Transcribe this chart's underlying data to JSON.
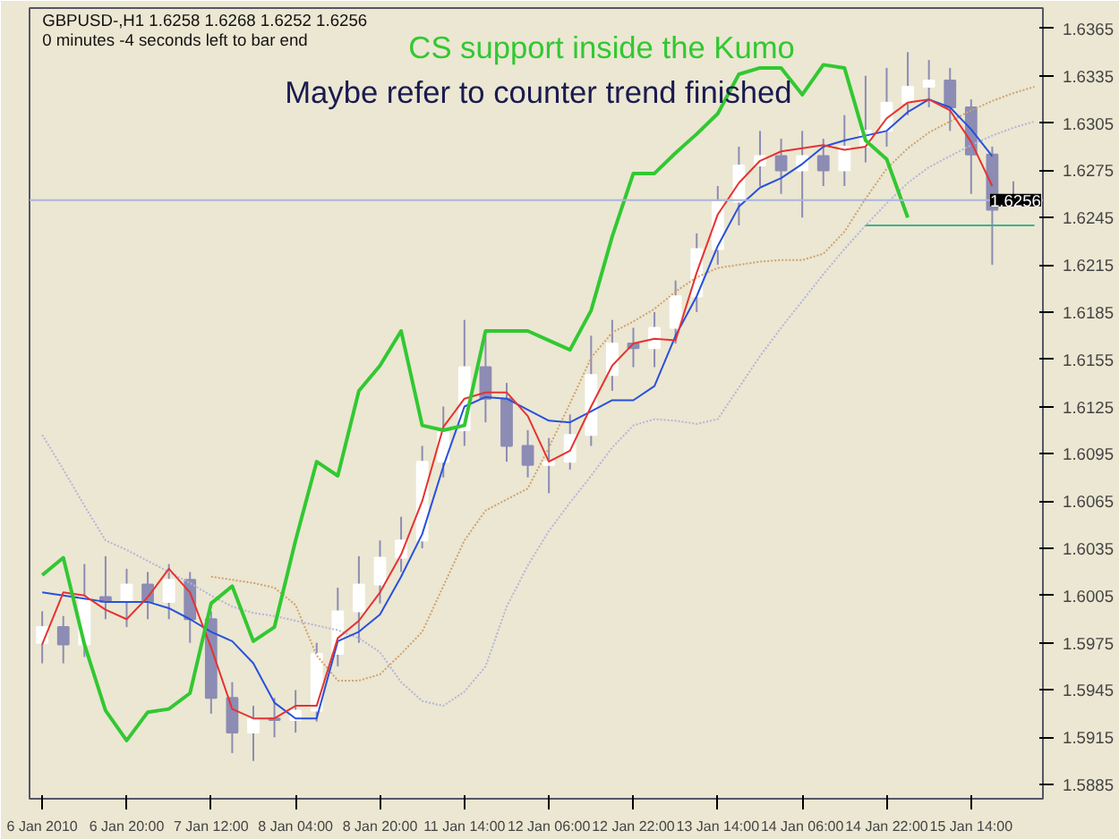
{
  "chart_data": {
    "type": "candlestick",
    "title": "GBPUSD-,H1  1.6258 1.6268 1.6252 1.6256",
    "subtitle": "0 minutes -4 seconds left to bar end",
    "annotations": [
      "CS support inside the Kumo",
      "Maybe refer to counter trend finished"
    ],
    "categories": [
      "6 Jan 2010",
      null,
      null,
      null,
      "6 Jan 20:00",
      null,
      null,
      null,
      "7 Jan 12:00",
      null,
      null,
      null,
      "8 Jan 04:00",
      null,
      null,
      null,
      "8 Jan 20:00",
      null,
      null,
      null,
      "11 Jan 14:00",
      null,
      null,
      null,
      "12 Jan 06:00",
      null,
      null,
      null,
      "12 Jan 22:00",
      null,
      null,
      null,
      "13 Jan 14:00",
      null,
      null,
      null,
      "14 Jan 06:00",
      null,
      null,
      null,
      "14 Jan 22:00",
      null,
      null,
      null,
      "15 Jan 14:00",
      null,
      null,
      null
    ],
    "ohlc": [
      [
        1.5975,
        1.5995,
        1.5962,
        1.5985
      ],
      [
        1.5985,
        1.5992,
        1.5962,
        1.5974
      ],
      [
        1.5974,
        1.6025,
        1.5966,
        1.6004
      ],
      [
        1.6004,
        1.603,
        1.599,
        1.6001
      ],
      [
        1.6001,
        1.6022,
        1.5985,
        1.6012
      ],
      [
        1.6012,
        1.602,
        1.599,
        1.6001
      ],
      [
        1.6001,
        1.6025,
        1.599,
        1.6015
      ],
      [
        1.6015,
        1.602,
        1.5975,
        1.599
      ],
      [
        1.599,
        1.5995,
        1.593,
        1.594
      ],
      [
        1.594,
        1.595,
        1.5905,
        1.5918
      ],
      [
        1.5918,
        1.5935,
        1.59,
        1.5927
      ],
      [
        1.5927,
        1.594,
        1.5915,
        1.5926
      ],
      [
        1.5926,
        1.5945,
        1.5918,
        1.5932
      ],
      [
        1.5932,
        1.5975,
        1.5925,
        1.5968
      ],
      [
        1.5968,
        1.601,
        1.596,
        1.5995
      ],
      [
        1.5995,
        1.603,
        1.5975,
        1.6012
      ],
      [
        1.6012,
        1.604,
        1.6,
        1.6029
      ],
      [
        1.6029,
        1.6055,
        1.602,
        1.604
      ],
      [
        1.604,
        1.61,
        1.6035,
        1.609
      ],
      [
        1.609,
        1.6125,
        1.608,
        1.611
      ],
      [
        1.611,
        1.618,
        1.61,
        1.615
      ],
      [
        1.615,
        1.617,
        1.6115,
        1.613
      ],
      [
        1.613,
        1.614,
        1.609,
        1.61
      ],
      [
        1.61,
        1.611,
        1.608,
        1.6088
      ],
      [
        1.6088,
        1.6105,
        1.607,
        1.609
      ],
      [
        1.609,
        1.612,
        1.6085,
        1.6107
      ],
      [
        1.6107,
        1.617,
        1.61,
        1.6145
      ],
      [
        1.6145,
        1.618,
        1.6135,
        1.6165
      ],
      [
        1.6165,
        1.6175,
        1.615,
        1.6162
      ],
      [
        1.6162,
        1.6185,
        1.615,
        1.6175
      ],
      [
        1.6175,
        1.6205,
        1.6165,
        1.6195
      ],
      [
        1.6195,
        1.6235,
        1.6185,
        1.6225
      ],
      [
        1.6225,
        1.6265,
        1.6215,
        1.6255
      ],
      [
        1.6255,
        1.629,
        1.624,
        1.6278
      ],
      [
        1.6278,
        1.63,
        1.6265,
        1.6284
      ],
      [
        1.6284,
        1.6295,
        1.626,
        1.6275
      ],
      [
        1.6275,
        1.63,
        1.6245,
        1.6284
      ],
      [
        1.6284,
        1.6295,
        1.6265,
        1.6275
      ],
      [
        1.6275,
        1.631,
        1.6265,
        1.629
      ],
      [
        1.629,
        1.6335,
        1.628,
        1.63
      ],
      [
        1.63,
        1.634,
        1.629,
        1.6318
      ],
      [
        1.6318,
        1.635,
        1.631,
        1.6328
      ],
      [
        1.6328,
        1.6345,
        1.6315,
        1.6332
      ],
      [
        1.6332,
        1.634,
        1.63,
        1.6315
      ],
      [
        1.6315,
        1.632,
        1.626,
        1.6285
      ],
      [
        1.6285,
        1.629,
        1.6215,
        1.625
      ],
      [
        1.6258,
        1.6268,
        1.6252,
        1.6256
      ],
      null
    ],
    "colors": [
      "#ffffff",
      "#8c8cb4",
      "#ffffff",
      "#8c8cb4",
      "#ffffff",
      "#8c8cb4",
      "#ffffff",
      "#8c8cb4",
      "#8c8cb4",
      "#8c8cb4",
      "#ffffff",
      "#8c8cb4",
      "#ffffff",
      "#ffffff",
      "#ffffff",
      "#ffffff",
      "#ffffff",
      "#ffffff",
      "#ffffff",
      "#ffffff",
      "#ffffff",
      "#8c8cb4",
      "#8c8cb4",
      "#8c8cb4",
      "#ffffff",
      "#ffffff",
      "#ffffff",
      "#ffffff",
      "#8c8cb4",
      "#ffffff",
      "#ffffff",
      "#ffffff",
      "#ffffff",
      "#ffffff",
      "#ffffff",
      "#8c8cb4",
      "#ffffff",
      "#8c8cb4",
      "#ffffff",
      "#ffffff",
      "#ffffff",
      "#ffffff",
      "#ffffff",
      "#8c8cb4",
      "#8c8cb4",
      "#8c8cb4",
      "#ffffff",
      null
    ],
    "series": [
      {
        "type": "line",
        "line_style": "dotted",
        "color": "#b4b4dc",
        "values": [
          1.6107,
          1.6085,
          1.6062,
          1.604,
          1.6034,
          1.6027,
          1.602,
          1.6013,
          1.6005,
          1.5998,
          1.5994,
          1.5992,
          1.5989,
          1.5986,
          1.5983,
          1.5978,
          1.5969,
          1.595,
          1.5938,
          1.5935,
          1.5944,
          1.596,
          1.5998,
          1.6024,
          1.6046,
          1.6064,
          1.6081,
          1.6099,
          1.6113,
          1.6117,
          1.6116,
          1.6114,
          1.6117,
          1.6137,
          1.6157,
          1.6175,
          1.6192,
          1.6209,
          1.6225,
          1.624,
          1.6254,
          1.6267,
          1.6277,
          1.6284,
          1.6291,
          1.6297,
          1.6302,
          1.6306
        ]
      },
      {
        "type": "line",
        "line_style": "dotted",
        "color": "#d2a06e",
        "values": [
          null,
          null,
          null,
          null,
          null,
          null,
          null,
          null,
          1.6017,
          1.6015,
          1.6013,
          1.601,
          1.5999,
          1.5967,
          1.5951,
          1.5951,
          1.5955,
          1.5968,
          1.5982,
          1.6011,
          1.604,
          1.6059,
          1.6066,
          1.6073,
          1.6099,
          1.6127,
          1.6156,
          1.6172,
          1.6179,
          1.6187,
          1.6198,
          1.6207,
          1.6213,
          1.6215,
          1.6217,
          1.6218,
          1.6218,
          1.6222,
          1.6236,
          1.6257,
          1.6276,
          1.6289,
          1.6299,
          1.6306,
          1.6313,
          1.6319,
          1.6324,
          1.6328
        ]
      },
      {
        "type": "line",
        "line_style": "solid",
        "color": "#2850dc",
        "values": [
          1.6007,
          1.6005,
          1.6003,
          1.6001,
          1.6001,
          1.6001,
          1.5997,
          1.599,
          1.5982,
          1.5976,
          1.5962,
          1.5937,
          1.5927,
          1.5927,
          1.5976,
          1.5982,
          1.5993,
          1.6017,
          1.6044,
          1.6087,
          1.6125,
          1.6131,
          1.613,
          1.6123,
          1.6116,
          1.6115,
          1.6122,
          1.6129,
          1.6129,
          1.6138,
          1.617,
          1.6195,
          1.6227,
          1.6252,
          1.6264,
          1.627,
          1.6279,
          1.629,
          1.6294,
          1.6297,
          1.63,
          1.6312,
          1.632,
          1.6315,
          1.6301,
          1.6284,
          null,
          null
        ]
      },
      {
        "type": "line",
        "line_style": "solid",
        "color": "#e63232",
        "values": [
          1.5974,
          1.6007,
          1.6005,
          1.5996,
          1.599,
          1.6004,
          1.6022,
          1.6007,
          1.5972,
          1.5933,
          1.5927,
          1.5927,
          1.5935,
          1.5935,
          1.5978,
          1.5989,
          1.6007,
          1.6031,
          1.6065,
          1.6112,
          1.613,
          1.6134,
          1.6134,
          1.6119,
          1.609,
          1.6097,
          1.6125,
          1.6151,
          1.6165,
          1.6168,
          1.6167,
          1.621,
          1.6247,
          1.6267,
          1.6281,
          1.6287,
          1.6289,
          1.6291,
          1.6288,
          1.629,
          1.6308,
          1.6318,
          1.632,
          1.6313,
          1.6293,
          1.6265,
          null,
          null
        ]
      },
      {
        "type": "line",
        "line_style": "solid",
        "color": "#32c832",
        "values": [
          1.6018,
          1.6029,
          1.5974,
          1.5932,
          1.5913,
          1.5931,
          1.5933,
          1.5943,
          1.6,
          1.6011,
          1.5976,
          1.5985,
          1.604,
          1.609,
          1.6081,
          1.6135,
          1.6151,
          1.6173,
          1.6113,
          1.611,
          1.6113,
          1.6173,
          1.6173,
          1.6173,
          1.6167,
          1.6161,
          1.6186,
          1.6233,
          1.6273,
          1.6273,
          1.6286,
          1.6298,
          1.6311,
          1.6336,
          1.634,
          1.634,
          1.6323,
          1.6342,
          1.634,
          1.6294,
          1.6282,
          1.6245,
          null,
          null,
          null,
          null,
          null,
          null
        ]
      },
      {
        "type": "line",
        "line_style": "solid",
        "color": "#3cb48c",
        "values": [
          null,
          null,
          null,
          null,
          null,
          null,
          null,
          null,
          null,
          null,
          null,
          null,
          null,
          null,
          null,
          null,
          null,
          null,
          null,
          null,
          null,
          null,
          null,
          null,
          null,
          null,
          null,
          null,
          null,
          null,
          null,
          null,
          null,
          null,
          null,
          null,
          null,
          null,
          null,
          1.624,
          1.624,
          1.624,
          1.624,
          1.624,
          1.624,
          1.624,
          1.624,
          1.624
        ]
      }
    ],
    "ref_lines": [
      {
        "axis": "y",
        "value": 1.6256,
        "label": "1.6256",
        "color": "#aab4dc"
      }
    ],
    "ylim": [
      1.5876,
      1.6378
    ],
    "yticks": [
      1.5885,
      1.5915,
      1.5945,
      1.5975,
      1.6005,
      1.6035,
      1.6065,
      1.6095,
      1.6125,
      1.6155,
      1.6185,
      1.6215,
      1.6245,
      1.6275,
      1.6305,
      1.6335,
      1.6365
    ],
    "grid": false
  }
}
